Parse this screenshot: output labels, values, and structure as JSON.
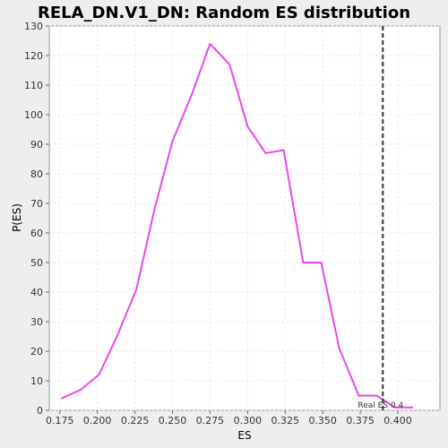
{
  "chart_data": {
    "type": "line",
    "title": "RELA_DN.V1_DN: Random ES distribution",
    "xlabel": "ES",
    "ylabel": "P(ES)",
    "xlim": [
      0.168,
      0.428
    ],
    "ylim": [
      0,
      130
    ],
    "xticks": [
      0.175,
      0.2,
      0.225,
      0.25,
      0.275,
      0.3,
      0.325,
      0.35,
      0.375,
      0.4
    ],
    "xtick_labels": [
      "0.175",
      "0.200",
      "0.225",
      "0.250",
      "0.275",
      "0.300",
      "0.325",
      "0.350",
      "0.375",
      "0.400"
    ],
    "yticks": [
      0,
      10,
      20,
      30,
      40,
      50,
      60,
      70,
      80,
      90,
      100,
      110,
      120,
      130
    ],
    "ytick_labels": [
      "0",
      "10",
      "20",
      "30",
      "40",
      "50",
      "60",
      "70",
      "80",
      "90",
      "100",
      "110",
      "120",
      "130"
    ],
    "grid": true,
    "series": [
      {
        "color": "#ee44ee",
        "x": [
          0.176,
          0.189,
          0.201,
          0.213,
          0.226,
          0.238,
          0.25,
          0.263,
          0.275,
          0.288,
          0.3,
          0.312,
          0.324,
          0.337,
          0.349,
          0.361,
          0.374,
          0.386,
          0.398,
          0.41
        ],
        "y": [
          4,
          7,
          12,
          25,
          41,
          68,
          91,
          107,
          124,
          117,
          96,
          87,
          88,
          50,
          50,
          21,
          5,
          5,
          1,
          1
        ]
      }
    ],
    "real_es": {
      "value": 0.39,
      "label": "Real ES 0.4",
      "color": "#333333"
    }
  }
}
